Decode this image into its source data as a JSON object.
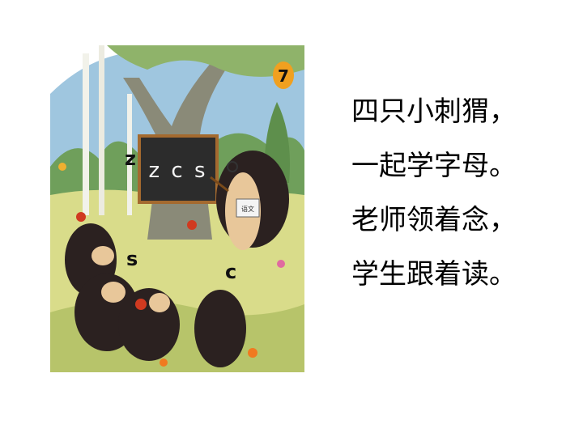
{
  "illustration": {
    "page_number": "7",
    "blackboard_text": "z c s",
    "letters": [
      "z",
      "s",
      "c"
    ],
    "book_label": "语文",
    "colors": {
      "sky": "#9fc6df",
      "grass": "#d9dc8a",
      "blackboard": "#2c2c2c",
      "hedgehog": "#2b2120",
      "page_badge": "#f0a020"
    }
  },
  "poem": {
    "lines": [
      "四只小刺猬，",
      "一起学字母。",
      "老师领着念，",
      "学生跟着读。"
    ]
  }
}
